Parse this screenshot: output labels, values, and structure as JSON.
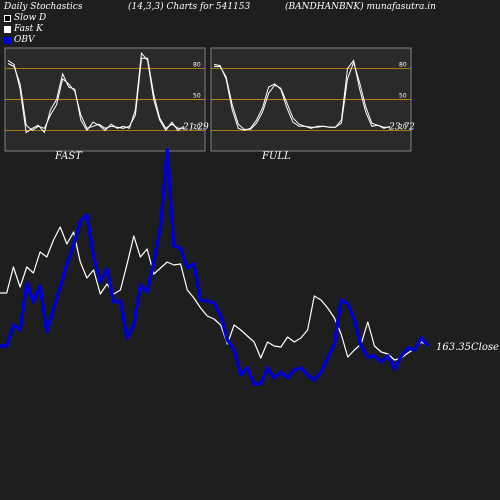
{
  "header": {
    "title_left": "Daily Stochastics",
    "params": "(14,3,3) Charts for 541153",
    "symbol_site": "(BANDHANBNK) munafasutra.in"
  },
  "legend": {
    "slow_d": "Slow  D",
    "fast_k": "Fast K",
    "obv": "OBV"
  },
  "colors": {
    "background": "#1e1e1e",
    "panel_bg": "#2a2a2a",
    "level_lines": "#b8860b",
    "stoch_line": "#ffffff",
    "obv": "#0000cc",
    "price": "#ffffff"
  },
  "chart_data": [
    {
      "type": "line",
      "panel": "FAST",
      "title": "FAST",
      "ylim": [
        0,
        100
      ],
      "levels": [
        20,
        50,
        80
      ],
      "y_tick_labels": [
        "80",
        "50",
        "20"
      ],
      "last_value_label": "21.29",
      "series": [
        {
          "values": [
            88,
            84,
            60,
            18,
            22,
            25,
            18,
            40,
            50,
            75,
            62,
            60,
            30,
            20,
            28,
            25,
            20,
            26,
            22,
            24,
            22,
            40,
            95,
            88,
            50,
            30,
            20,
            28,
            20,
            24
          ]
        },
        {
          "values": [
            85,
            82,
            65,
            25,
            20,
            24,
            22,
            35,
            45,
            70,
            65,
            58,
            35,
            22,
            24,
            26,
            22,
            24,
            23,
            22,
            24,
            35,
            90,
            90,
            55,
            32,
            22,
            26,
            22,
            22
          ]
        }
      ]
    },
    {
      "type": "line",
      "panel": "FULL",
      "title": "FULL",
      "ylim": [
        0,
        100
      ],
      "levels": [
        20,
        50,
        80
      ],
      "y_tick_labels": [
        "80",
        "50",
        "20"
      ],
      "last_value_label": "23.72",
      "series": [
        {
          "values": [
            84,
            83,
            70,
            40,
            22,
            20,
            22,
            30,
            42,
            62,
            65,
            60,
            42,
            28,
            24,
            24,
            22,
            24,
            24,
            23,
            23,
            30,
            80,
            88,
            60,
            38,
            24,
            25,
            22,
            24
          ]
        },
        {
          "values": [
            82,
            82,
            72,
            45,
            26,
            21,
            21,
            27,
            38,
            56,
            64,
            61,
            47,
            32,
            26,
            24,
            23,
            23,
            24,
            23,
            23,
            27,
            70,
            86,
            66,
            43,
            27,
            25,
            23,
            23
          ]
        }
      ]
    },
    {
      "type": "line",
      "panel": "price_obv",
      "close_label": "163.35",
      "close_suffix": "Close",
      "series": [
        {
          "values": [
            293,
            293,
            267,
            287,
            267,
            273,
            252,
            257,
            240,
            227,
            244,
            232,
            262,
            278,
            270,
            294,
            284,
            294,
            290,
            264,
            236,
            257,
            249,
            274,
            268,
            262,
            265,
            264,
            290,
            298,
            308,
            316,
            319,
            325,
            344,
            325,
            330,
            336,
            342,
            358,
            342,
            346,
            347,
            337,
            342,
            338,
            330,
            296,
            300,
            308,
            318,
            334,
            357,
            350,
            344,
            322,
            346,
            352,
            354,
            360,
            358,
            353,
            349,
            342,
            346
          ]
        },
        {
          "values": [
            346,
            346,
            325,
            330,
            283,
            302,
            286,
            332,
            309,
            287,
            264,
            245,
            221,
            215,
            257,
            282,
            269,
            302,
            301,
            338,
            325,
            285,
            292,
            262,
            227,
            150,
            246,
            248,
            268,
            264,
            300,
            301,
            303,
            316,
            340,
            350,
            375,
            368,
            384,
            384,
            368,
            378,
            372,
            378,
            370,
            368,
            375,
            380,
            372,
            358,
            344,
            300,
            304,
            320,
            346,
            357,
            356,
            362,
            356,
            369,
            356,
            348,
            350,
            338,
            346
          ]
        }
      ]
    }
  ]
}
